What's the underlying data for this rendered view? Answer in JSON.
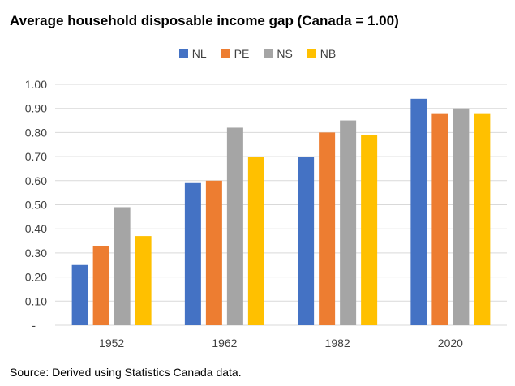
{
  "title": "Average household disposable income gap (Canada = 1.00)",
  "source": "Source: Derived using Statistics Canada data.",
  "colors": {
    "NL": "#4472C4",
    "PE": "#ED7D31",
    "NS": "#A5A5A5",
    "NB": "#FFC000"
  },
  "chart_data": {
    "type": "bar",
    "categories": [
      "1952",
      "1962",
      "1982",
      "2020"
    ],
    "series": [
      {
        "name": "NL",
        "values": [
          0.25,
          0.59,
          0.7,
          0.94
        ]
      },
      {
        "name": "PE",
        "values": [
          0.33,
          0.6,
          0.8,
          0.88
        ]
      },
      {
        "name": "NS",
        "values": [
          0.49,
          0.82,
          0.85,
          0.9
        ]
      },
      {
        "name": "NB",
        "values": [
          0.37,
          0.7,
          0.79,
          0.88
        ]
      }
    ],
    "ylim": [
      0,
      1.0
    ],
    "yticks": [
      "-",
      "0.10",
      "0.20",
      "0.30",
      "0.40",
      "0.50",
      "0.60",
      "0.70",
      "0.80",
      "0.90",
      "1.00"
    ],
    "grid": true,
    "legend": "top"
  }
}
